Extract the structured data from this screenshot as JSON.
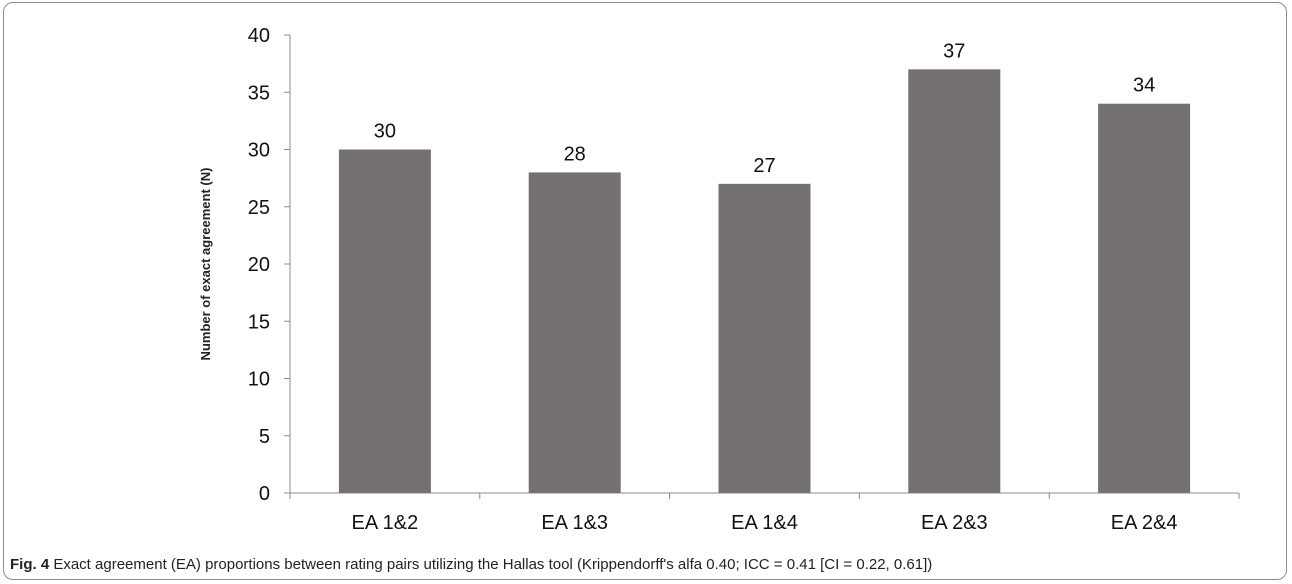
{
  "chart_data": {
    "type": "bar",
    "categories": [
      "EA 1&2",
      "EA 1&3",
      "EA 1&4",
      "EA 2&3",
      "EA 2&4"
    ],
    "values": [
      30,
      28,
      27,
      37,
      34
    ],
    "data_labels": [
      "30",
      "28",
      "27",
      "37",
      "34"
    ],
    "ylabel": "Number of exact  agreement (N)",
    "ylim": [
      0,
      40
    ],
    "yticks": [
      0,
      5,
      10,
      15,
      20,
      25,
      30,
      35,
      40
    ],
    "grid": false,
    "legend": "none",
    "bar_color": "#767171"
  },
  "caption": {
    "label": "Fig. 4",
    "text": " Exact agreement (EA) proportions between rating pairs utilizing the Hallas tool (Krippendorff's alfa 0.40; ICC = 0.41 [CI = 0.22, 0.61])"
  }
}
